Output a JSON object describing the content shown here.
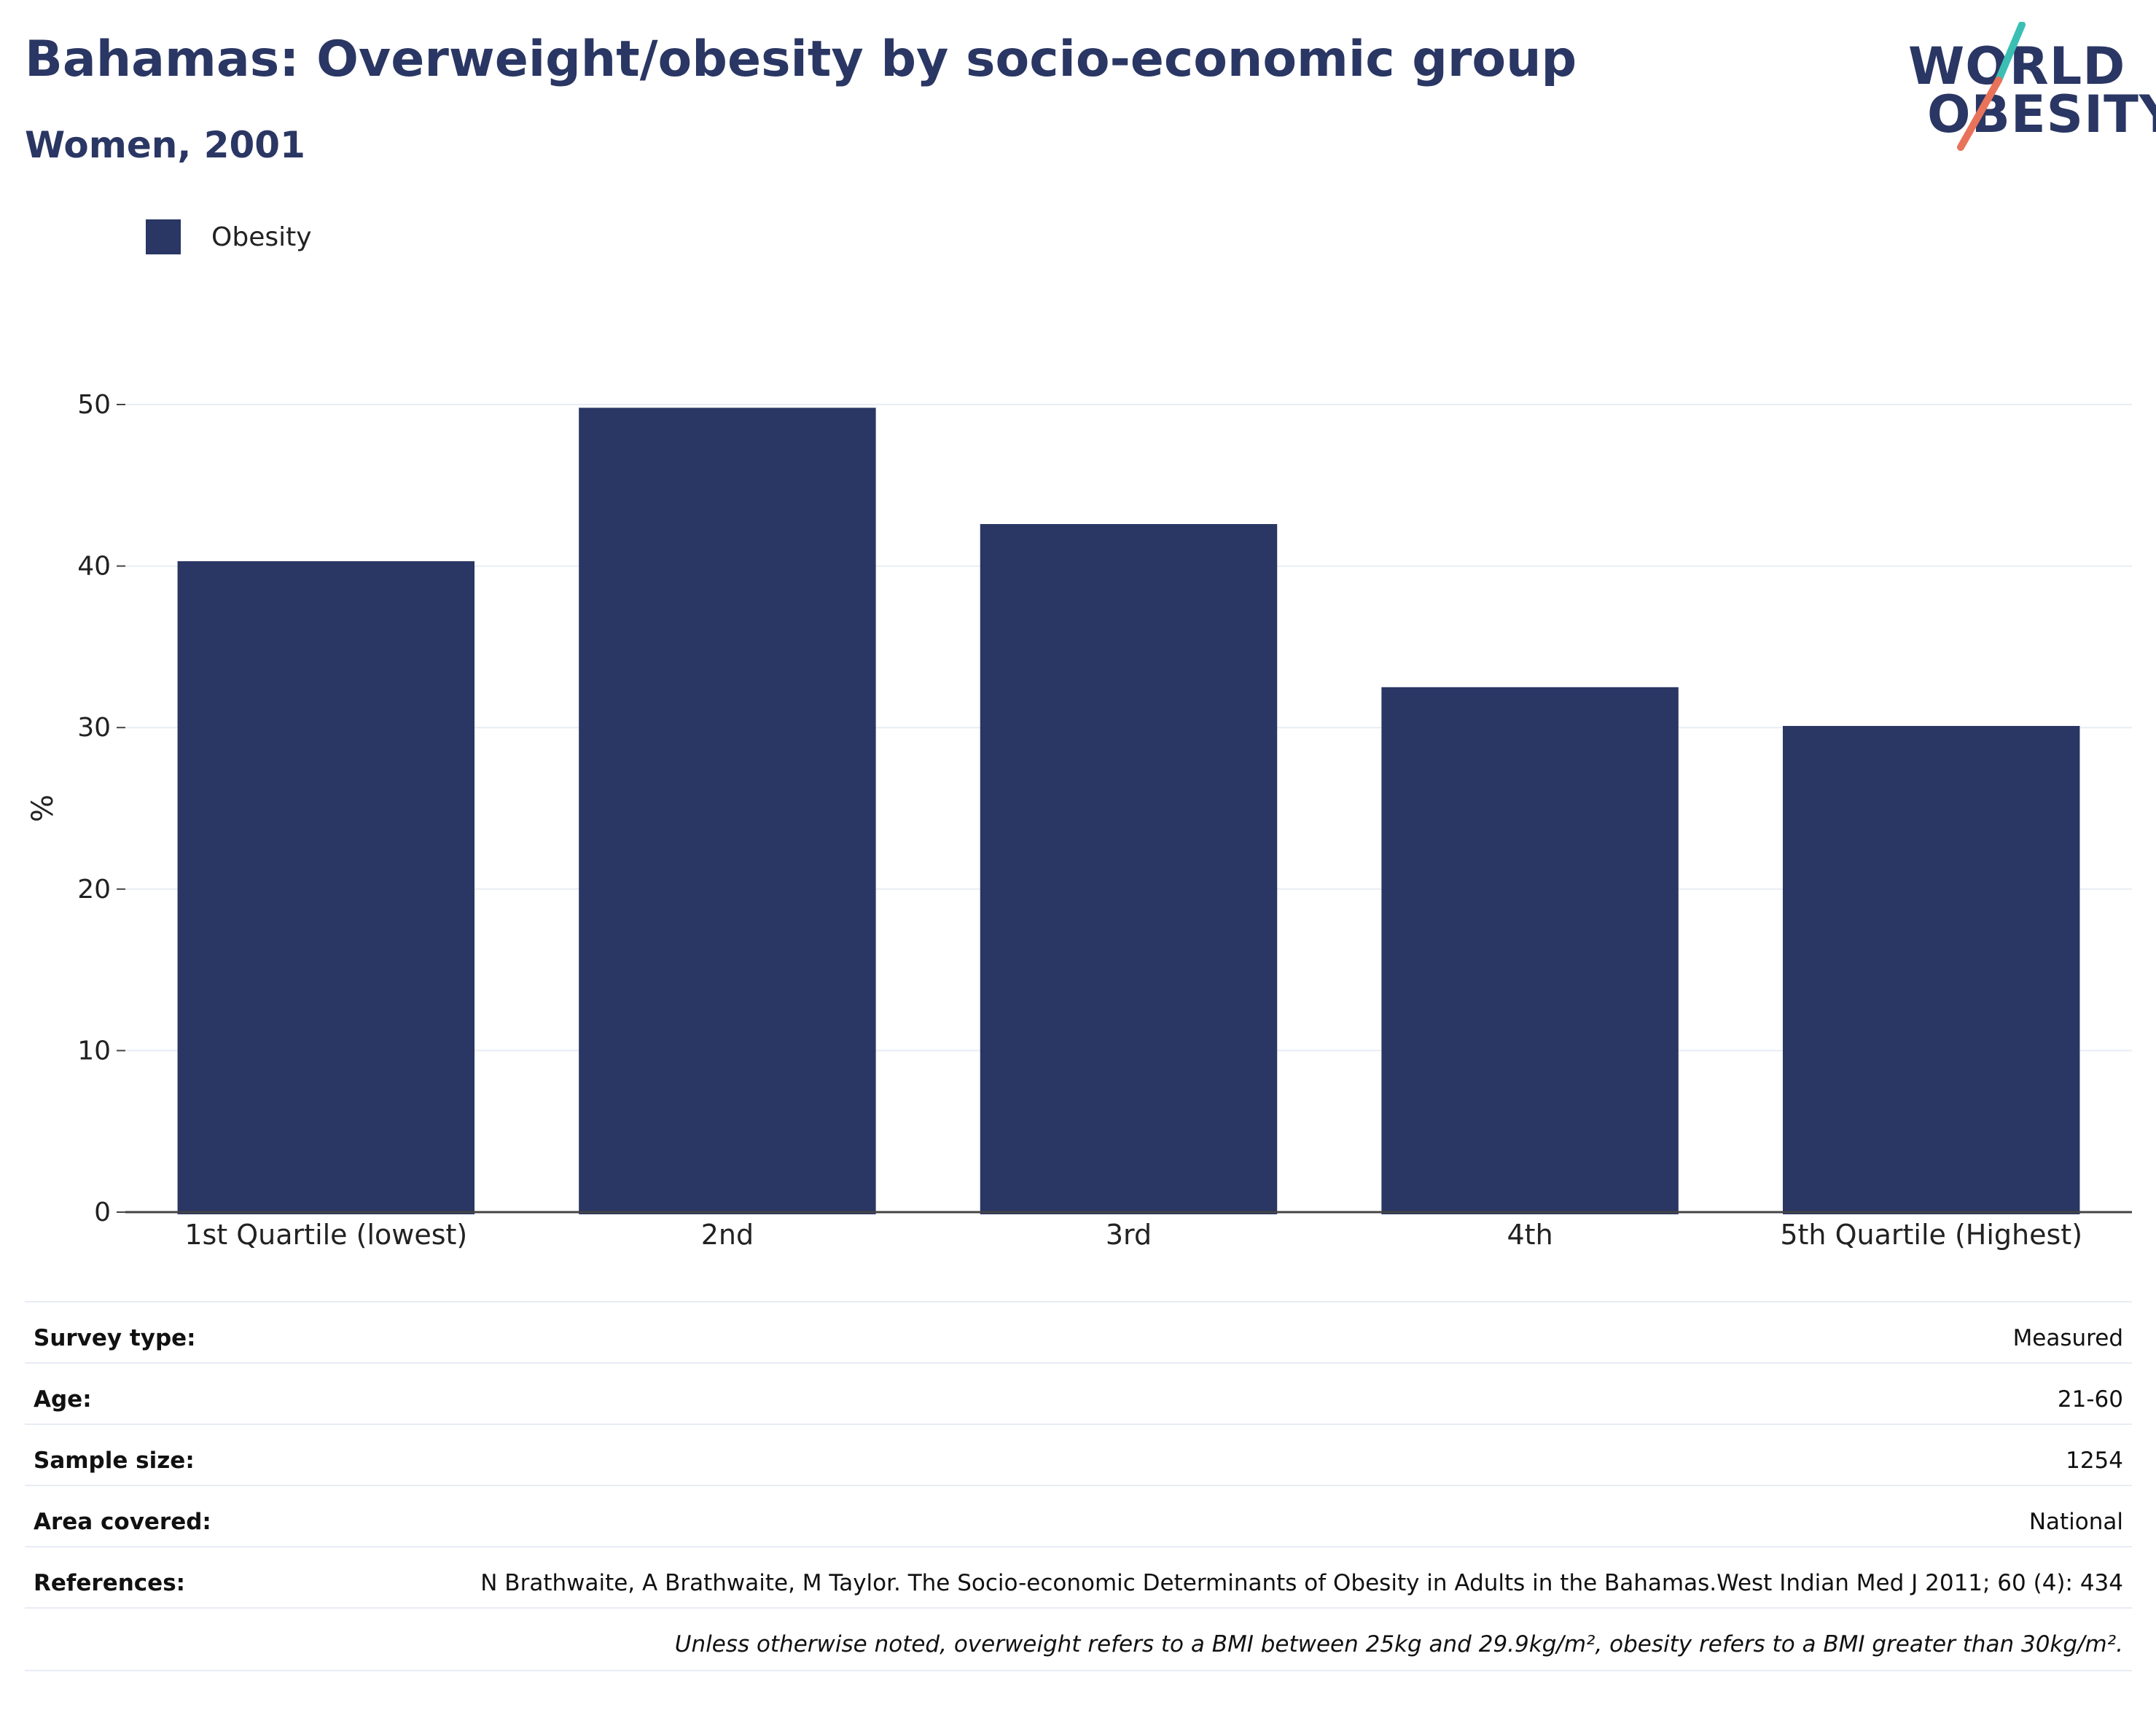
{
  "header": {
    "title": "Bahamas: Overweight/obesity by socio-economic group",
    "subtitle": "Women, 2001"
  },
  "logo": {
    "line1": "WORLD",
    "line2": "OBESITY",
    "accent_teal": "#3bbfb5",
    "accent_coral": "#e8735a"
  },
  "colors": {
    "bar": "#2a3663",
    "grid": "#e8ecf5",
    "axis": "#444444"
  },
  "chart_data": {
    "type": "bar",
    "categories": [
      "1st Quartile (lowest)",
      "2nd",
      "3rd",
      "4th",
      "5th Quartile (Highest)"
    ],
    "series": [
      {
        "name": "Obesity",
        "values": [
          40.3,
          49.8,
          42.6,
          32.5,
          30.1
        ]
      }
    ],
    "ylabel": "%",
    "xlabel": "",
    "ylim": [
      0,
      50
    ],
    "yticks": [
      0,
      10,
      20,
      30,
      40,
      50
    ],
    "grid": true,
    "legend_position": "top-left"
  },
  "info": {
    "rows": [
      {
        "label": "Survey type:",
        "value": "Measured"
      },
      {
        "label": "Age:",
        "value": "21-60"
      },
      {
        "label": "Sample size:",
        "value": "1254"
      },
      {
        "label": "Area covered:",
        "value": "National"
      },
      {
        "label": "References:",
        "value": "N Brathwaite, A Brathwaite, M Taylor. The Socio-economic Determinants of Obesity in Adults in the Bahamas.West Indian Med J 2011; 60 (4): 434"
      }
    ],
    "note": "Unless otherwise noted, overweight refers to a BMI between 25kg and 29.9kg/m², obesity refers to a BMI greater than 30kg/m²."
  }
}
